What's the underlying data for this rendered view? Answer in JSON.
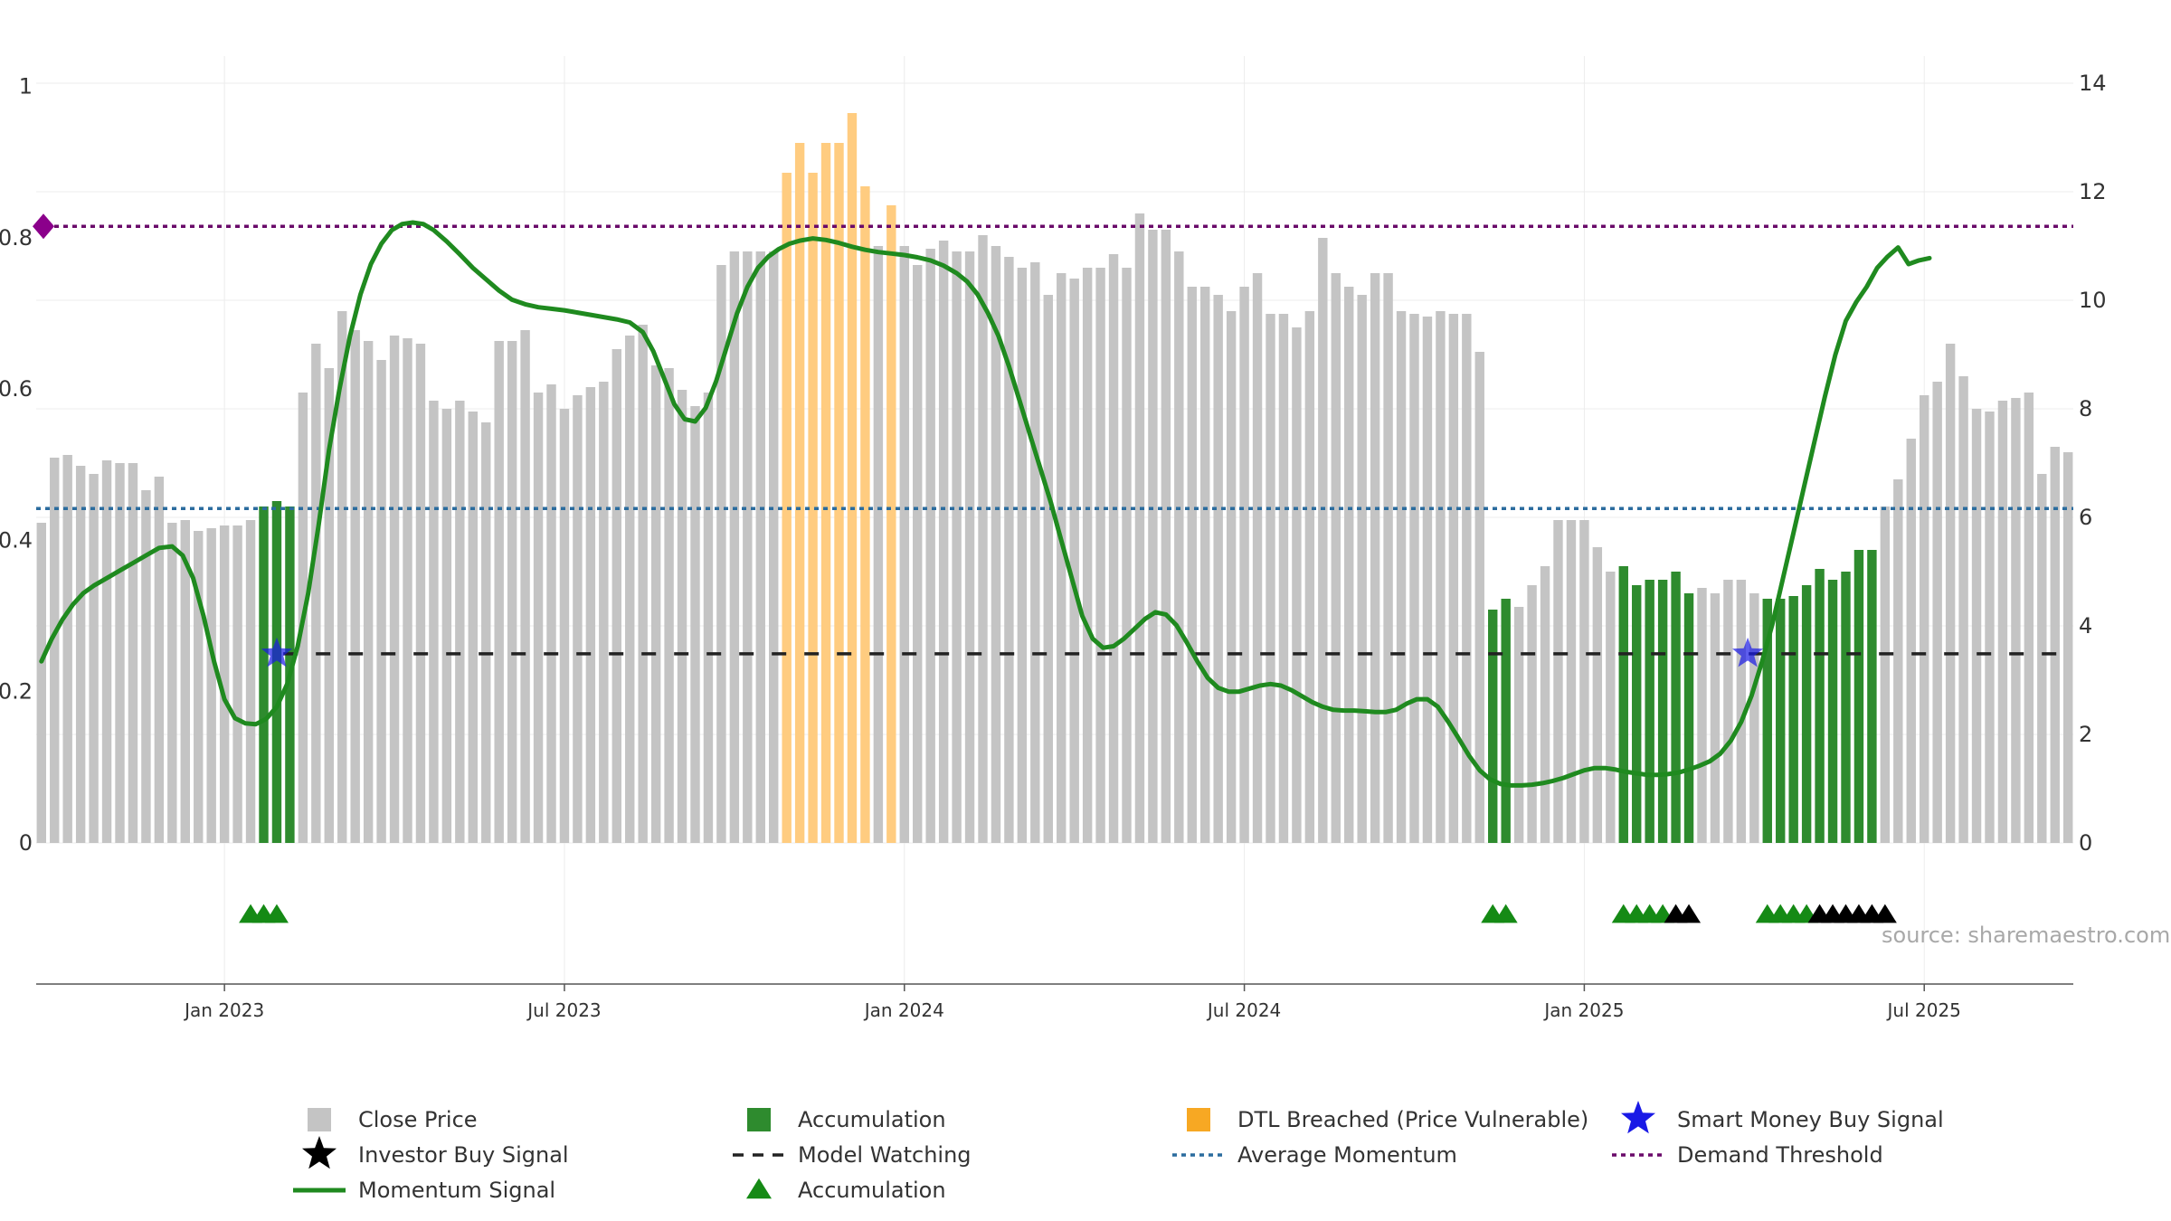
{
  "chart_data": {
    "type": "bar",
    "title": "",
    "source_label": "source: sharemaestro.com",
    "left_axis": {
      "ylim": [
        0,
        1.04
      ],
      "ticks": [
        0,
        0.2,
        0.4,
        0.6,
        0.8,
        1
      ],
      "tick_labels": [
        "0",
        "0.2",
        "0.4",
        "0.6",
        "0.8",
        "1"
      ]
    },
    "right_axis": {
      "ylim": [
        0,
        14.5
      ],
      "ticks": [
        0,
        2,
        4,
        6,
        8,
        10,
        12,
        14
      ],
      "tick_labels": [
        "0",
        "2",
        "4",
        "6",
        "8",
        "10",
        "12",
        "14"
      ]
    },
    "x_ticks": [
      "Jan 2023",
      "Jul 2023",
      "Jan 2024",
      "Jul 2024",
      "Jan 2025",
      "Jul 2025"
    ],
    "x_tick_index": [
      14,
      40,
      66,
      92,
      118,
      144
    ],
    "colors": {
      "close": "#c4c4c4",
      "accumulation": "#2e8b2e",
      "dtl": "#ffcc80",
      "momentum": "#1f8a1f",
      "average": "#2b6c9e",
      "demand": "#6a0a6a",
      "watching": "#222222",
      "smart_money": "#1a1ae6",
      "investor": "#000000",
      "acc_marker": "#158a15"
    },
    "close_price": [
      5.9,
      7.1,
      7.15,
      6.95,
      6.8,
      7.05,
      7.0,
      7.0,
      6.5,
      6.75,
      5.9,
      5.95,
      5.75,
      5.8,
      5.85,
      5.85,
      5.95,
      6.2,
      6.3,
      6.2,
      8.3,
      9.2,
      8.75,
      9.8,
      9.45,
      9.25,
      8.9,
      9.35,
      9.3,
      9.2,
      8.15,
      8.0,
      8.15,
      7.95,
      7.75,
      9.25,
      9.25,
      9.45,
      8.3,
      8.45,
      8.0,
      8.25,
      8.4,
      8.5,
      9.1,
      9.35,
      9.55,
      8.8,
      8.75,
      8.35,
      8.05,
      8.3,
      10.65,
      10.9,
      10.9,
      10.9,
      10.9,
      12.35,
      12.9,
      12.35,
      12.9,
      12.9,
      13.45,
      12.1,
      11.0,
      11.75,
      11.0,
      10.65,
      10.95,
      11.1,
      10.9,
      10.9,
      11.2,
      11.0,
      10.8,
      10.6,
      10.7,
      10.1,
      10.5,
      10.4,
      10.6,
      10.6,
      10.85,
      10.6,
      11.6,
      11.3,
      11.3,
      10.9,
      10.25,
      10.25,
      10.1,
      9.8,
      10.25,
      10.5,
      9.75,
      9.75,
      9.5,
      9.8,
      11.15,
      10.5,
      10.25,
      10.1,
      10.5,
      10.5,
      9.8,
      9.75,
      9.7,
      9.8,
      9.75,
      9.75,
      9.05,
      4.3,
      4.5,
      4.35,
      4.75,
      5.1,
      5.95,
      5.95,
      5.95,
      5.45,
      5.0,
      5.1,
      4.75,
      4.85,
      4.85,
      5.0,
      4.6,
      4.7,
      4.6,
      4.85,
      4.85,
      4.6,
      4.5,
      4.5,
      4.55,
      4.75,
      5.05,
      4.85,
      5.0,
      5.4,
      5.4,
      6.2,
      6.7,
      7.45,
      8.25,
      8.5,
      9.2,
      8.6,
      8.0,
      7.95,
      8.15,
      8.2,
      8.3,
      6.8,
      7.3,
      7.2
    ],
    "bar_type": [
      "close",
      "close",
      "close",
      "close",
      "close",
      "close",
      "close",
      "close",
      "close",
      "close",
      "close",
      "close",
      "close",
      "close",
      "close",
      "close",
      "close",
      "acc",
      "acc",
      "acc",
      "close",
      "close",
      "close",
      "close",
      "close",
      "close",
      "close",
      "close",
      "close",
      "close",
      "close",
      "close",
      "close",
      "close",
      "close",
      "close",
      "close",
      "close",
      "close",
      "close",
      "close",
      "close",
      "close",
      "close",
      "close",
      "close",
      "close",
      "close",
      "close",
      "close",
      "close",
      "close",
      "close",
      "close",
      "close",
      "close",
      "close",
      "dtl",
      "dtl",
      "dtl",
      "dtl",
      "dtl",
      "dtl",
      "dtl",
      "close",
      "dtl",
      "close",
      "close",
      "close",
      "close",
      "close",
      "close",
      "close",
      "close",
      "close",
      "close",
      "close",
      "close",
      "close",
      "close",
      "close",
      "close",
      "close",
      "close",
      "close",
      "close",
      "close",
      "close",
      "close",
      "close",
      "close",
      "close",
      "close",
      "close",
      "close",
      "close",
      "close",
      "close",
      "close",
      "close",
      "close",
      "close",
      "close",
      "close",
      "close",
      "close",
      "close",
      "close",
      "close",
      "close",
      "close",
      "acc",
      "acc",
      "close",
      "close",
      "close",
      "close",
      "close",
      "close",
      "close",
      "close",
      "acc",
      "acc",
      "acc",
      "acc",
      "acc",
      "acc",
      "close",
      "close",
      "close",
      "close",
      "close",
      "acc",
      "acc",
      "acc",
      "acc",
      "acc",
      "acc",
      "acc",
      "acc",
      "acc",
      "close",
      "close",
      "close",
      "close",
      "close",
      "close",
      "close",
      "close",
      "close",
      "close",
      "close",
      "close",
      "close",
      "close",
      "close",
      "close"
    ],
    "momentum_signal": [
      [
        0,
        0.24
      ],
      [
        0.8,
        0.27
      ],
      [
        1.6,
        0.295
      ],
      [
        2.4,
        0.315
      ],
      [
        3.2,
        0.33
      ],
      [
        4.0,
        0.34
      ],
      [
        5.0,
        0.35
      ],
      [
        6.0,
        0.36
      ],
      [
        7.0,
        0.37
      ],
      [
        8.0,
        0.38
      ],
      [
        9.0,
        0.39
      ],
      [
        10.0,
        0.392
      ],
      [
        10.8,
        0.38
      ],
      [
        11.6,
        0.35
      ],
      [
        12.4,
        0.3
      ],
      [
        13.2,
        0.24
      ],
      [
        14.0,
        0.19
      ],
      [
        14.8,
        0.165
      ],
      [
        15.6,
        0.158
      ],
      [
        16.4,
        0.157
      ],
      [
        17.2,
        0.164
      ],
      [
        18.0,
        0.18
      ],
      [
        18.8,
        0.21
      ],
      [
        19.6,
        0.26
      ],
      [
        20.4,
        0.33
      ],
      [
        21.2,
        0.42
      ],
      [
        22.0,
        0.52
      ],
      [
        22.8,
        0.6
      ],
      [
        23.6,
        0.67
      ],
      [
        24.4,
        0.725
      ],
      [
        25.2,
        0.765
      ],
      [
        26.0,
        0.792
      ],
      [
        26.8,
        0.81
      ],
      [
        27.6,
        0.818
      ],
      [
        28.4,
        0.82
      ],
      [
        29.2,
        0.818
      ],
      [
        30.0,
        0.81
      ],
      [
        31.0,
        0.795
      ],
      [
        32.0,
        0.778
      ],
      [
        33.0,
        0.76
      ],
      [
        34.0,
        0.745
      ],
      [
        35.0,
        0.73
      ],
      [
        36.0,
        0.718
      ],
      [
        37.0,
        0.712
      ],
      [
        38.0,
        0.708
      ],
      [
        39.0,
        0.706
      ],
      [
        40.0,
        0.704
      ],
      [
        41.0,
        0.701
      ],
      [
        42.0,
        0.698
      ],
      [
        43.0,
        0.695
      ],
      [
        44.0,
        0.692
      ],
      [
        45.0,
        0.688
      ],
      [
        46.0,
        0.675
      ],
      [
        46.8,
        0.65
      ],
      [
        47.6,
        0.615
      ],
      [
        48.4,
        0.58
      ],
      [
        49.2,
        0.56
      ],
      [
        50.0,
        0.557
      ],
      [
        50.8,
        0.575
      ],
      [
        51.6,
        0.61
      ],
      [
        52.4,
        0.655
      ],
      [
        53.2,
        0.7
      ],
      [
        54.0,
        0.735
      ],
      [
        54.8,
        0.76
      ],
      [
        55.6,
        0.775
      ],
      [
        56.4,
        0.785
      ],
      [
        57.2,
        0.792
      ],
      [
        58.0,
        0.796
      ],
      [
        59.0,
        0.799
      ],
      [
        60.0,
        0.797
      ],
      [
        61.0,
        0.793
      ],
      [
        62.0,
        0.788
      ],
      [
        63.0,
        0.784
      ],
      [
        64.0,
        0.781
      ],
      [
        65.0,
        0.779
      ],
      [
        66.0,
        0.777
      ],
      [
        67.0,
        0.774
      ],
      [
        68.0,
        0.77
      ],
      [
        69.0,
        0.763
      ],
      [
        70.0,
        0.753
      ],
      [
        70.8,
        0.742
      ],
      [
        71.6,
        0.725
      ],
      [
        72.4,
        0.7
      ],
      [
        73.2,
        0.67
      ],
      [
        74.0,
        0.63
      ],
      [
        74.8,
        0.585
      ],
      [
        75.6,
        0.54
      ],
      [
        76.4,
        0.495
      ],
      [
        77.2,
        0.45
      ],
      [
        78.0,
        0.4
      ],
      [
        78.8,
        0.35
      ],
      [
        79.6,
        0.3
      ],
      [
        80.4,
        0.27
      ],
      [
        81.2,
        0.258
      ],
      [
        82.0,
        0.26
      ],
      [
        82.8,
        0.27
      ],
      [
        83.6,
        0.283
      ],
      [
        84.4,
        0.296
      ],
      [
        85.2,
        0.305
      ],
      [
        86.0,
        0.302
      ],
      [
        86.8,
        0.288
      ],
      [
        87.6,
        0.265
      ],
      [
        88.4,
        0.24
      ],
      [
        89.2,
        0.218
      ],
      [
        90.0,
        0.205
      ],
      [
        90.8,
        0.2
      ],
      [
        91.6,
        0.2
      ],
      [
        92.4,
        0.204
      ],
      [
        93.2,
        0.208
      ],
      [
        94.0,
        0.21
      ],
      [
        94.8,
        0.208
      ],
      [
        95.6,
        0.202
      ],
      [
        96.4,
        0.194
      ],
      [
        97.2,
        0.186
      ],
      [
        98.0,
        0.18
      ],
      [
        98.8,
        0.176
      ],
      [
        99.6,
        0.175
      ],
      [
        100.4,
        0.175
      ],
      [
        101.2,
        0.174
      ],
      [
        102.0,
        0.173
      ],
      [
        102.8,
        0.173
      ],
      [
        103.6,
        0.176
      ],
      [
        104.4,
        0.184
      ],
      [
        105.2,
        0.19
      ],
      [
        106.0,
        0.19
      ],
      [
        106.8,
        0.18
      ],
      [
        107.6,
        0.16
      ],
      [
        108.4,
        0.138
      ],
      [
        109.2,
        0.115
      ],
      [
        110.0,
        0.096
      ],
      [
        110.8,
        0.084
      ],
      [
        111.6,
        0.078
      ],
      [
        112.4,
        0.076
      ],
      [
        113.2,
        0.076
      ],
      [
        114.0,
        0.077
      ],
      [
        114.8,
        0.079
      ],
      [
        115.6,
        0.082
      ],
      [
        116.4,
        0.086
      ],
      [
        117.2,
        0.091
      ],
      [
        118.0,
        0.096
      ],
      [
        118.8,
        0.099
      ],
      [
        119.6,
        0.099
      ],
      [
        120.4,
        0.097
      ],
      [
        121.2,
        0.094
      ],
      [
        122.0,
        0.092
      ],
      [
        122.8,
        0.09
      ],
      [
        123.6,
        0.09
      ],
      [
        124.4,
        0.091
      ],
      [
        125.2,
        0.093
      ],
      [
        126.0,
        0.097
      ],
      [
        126.8,
        0.102
      ],
      [
        127.6,
        0.108
      ],
      [
        128.4,
        0.118
      ],
      [
        129.2,
        0.135
      ],
      [
        130.0,
        0.16
      ],
      [
        130.8,
        0.195
      ],
      [
        131.6,
        0.24
      ],
      [
        132.4,
        0.29
      ],
      [
        133.2,
        0.35
      ],
      [
        134.0,
        0.41
      ],
      [
        134.8,
        0.47
      ],
      [
        135.6,
        0.53
      ],
      [
        136.4,
        0.59
      ],
      [
        137.2,
        0.645
      ],
      [
        138.0,
        0.69
      ],
      [
        138.8,
        0.715
      ],
      [
        139.6,
        0.735
      ],
      [
        140.4,
        0.76
      ],
      [
        141.2,
        0.775
      ],
      [
        142.0,
        0.787
      ],
      [
        142.8,
        0.765
      ],
      [
        143.6,
        0.77
      ],
      [
        144.4,
        0.773
      ]
    ],
    "momentum_faded_range": [
      17,
      106
    ],
    "average_momentum": 0.442,
    "demand_threshold": 0.815,
    "model_watching_level": 0.25,
    "model_watching_start": 18.5,
    "smart_money_signals": [
      {
        "x": 18.0,
        "y": 0.25
      },
      {
        "x": 130.5,
        "y": 0.25
      }
    ],
    "accumulation_markers": [
      16,
      17,
      18,
      111,
      112,
      121,
      122,
      123,
      124,
      132,
      133,
      134,
      135
    ],
    "investor_markers": [
      125,
      126,
      136,
      137,
      138,
      139,
      140,
      141
    ],
    "legend": [
      [
        "Close Price",
        "Accumulation",
        "DTL Breached (Price Vulnerable)",
        "Smart Money Buy Signal"
      ],
      [
        "Investor Buy Signal",
        "Model Watching",
        "Average Momentum",
        "Demand Threshold"
      ],
      [
        "Momentum Signal",
        "Accumulation"
      ]
    ]
  }
}
